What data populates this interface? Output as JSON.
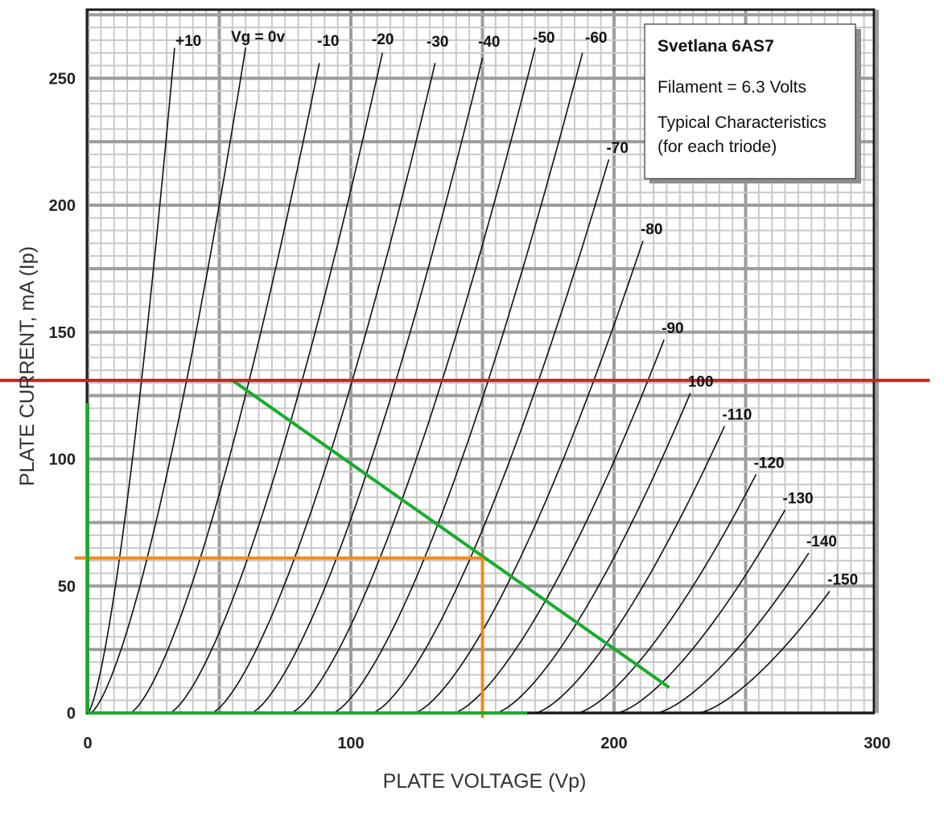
{
  "chart_data": {
    "type": "line",
    "title": "",
    "xlabel": "PLATE VOLTAGE (Vp)",
    "ylabel": "PLATE CURRENT, mA (Ip)",
    "xlim": [
      0,
      300
    ],
    "ylim": [
      0,
      280
    ],
    "x_ticks": [
      "0",
      "100",
      "200",
      "300"
    ],
    "y_ticks": [
      "0",
      "50",
      "100",
      "150",
      "200",
      "250"
    ],
    "grid": true,
    "info_box": {
      "title": "Svetlana 6AS7",
      "lines": [
        "Filament = 6.3 Volts",
        "Typical Characteristics",
        "(for each triode)"
      ]
    },
    "series": [
      {
        "name": "+10",
        "x0": 0,
        "x_end": 33,
        "y_end": 262
      },
      {
        "name": "Vg = 0v",
        "x0": 1,
        "x_end": 60,
        "y_end": 262
      },
      {
        "name": "-10",
        "x0": 16,
        "x_end": 88,
        "y_end": 256
      },
      {
        "name": "-20",
        "x0": 31,
        "x_end": 112,
        "y_end": 260
      },
      {
        "name": "-30",
        "x0": 47,
        "x_end": 132,
        "y_end": 256
      },
      {
        "name": "-40",
        "x0": 62,
        "x_end": 150,
        "y_end": 258
      },
      {
        "name": "-50",
        "x0": 77,
        "x_end": 170,
        "y_end": 262
      },
      {
        "name": "-60",
        "x0": 93,
        "x_end": 188,
        "y_end": 260
      },
      {
        "name": "-70",
        "x0": 108,
        "x_end": 198,
        "y_end": 218
      },
      {
        "name": "-80",
        "x0": 124,
        "x_end": 211,
        "y_end": 186
      },
      {
        "name": "-90",
        "x0": 139,
        "x_end": 219,
        "y_end": 147
      },
      {
        "name": "100",
        "x0": 155,
        "x_end": 229,
        "y_end": 126
      },
      {
        "name": "-110",
        "x0": 170,
        "x_end": 242,
        "y_end": 113
      },
      {
        "name": "-120",
        "x0": 186,
        "x_end": 254,
        "y_end": 94
      },
      {
        "name": "-130",
        "x0": 201,
        "x_end": 265,
        "y_end": 80
      },
      {
        "name": "-140",
        "x0": 216,
        "x_end": 274,
        "y_end": 63
      },
      {
        "name": "-150",
        "x0": 232,
        "x_end": 282,
        "y_end": 48
      }
    ],
    "overlays": [
      {
        "kind": "load-line",
        "color": "#1aab2e",
        "points": [
          [
            55,
            131
          ],
          [
            221,
            10
          ]
        ]
      },
      {
        "kind": "horizontal-limit",
        "color": "#cc1f1f",
        "y": 131,
        "x_range": [
          -40,
          320
        ]
      },
      {
        "kind": "operating-point-x",
        "color": "#f08a1a",
        "x": 150,
        "y_range": [
          -2,
          61
        ]
      },
      {
        "kind": "operating-point-y",
        "color": "#f08a1a",
        "y": 61,
        "x_range": [
          -5,
          150
        ]
      },
      {
        "kind": "axis-highlight-vertical",
        "color": "#1aab2e",
        "x": 0,
        "y_range": [
          0,
          122
        ]
      },
      {
        "kind": "axis-highlight-horizontal",
        "color": "#1aab2e",
        "y": 0,
        "x_range": [
          0,
          167
        ]
      }
    ]
  }
}
